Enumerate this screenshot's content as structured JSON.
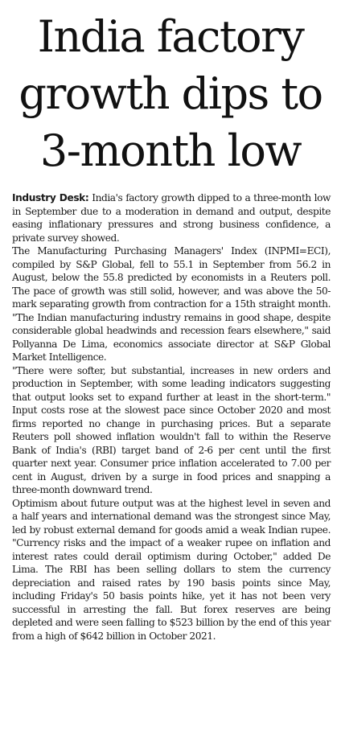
{
  "headline": {
    "line1": "India factory",
    "line2": "growth dips to",
    "line3": "3-month low"
  },
  "byline": "Industry Desk:",
  "paragraphs": [
    "India's factory growth dipped to a three-month low in September due to a moderation in demand and output, despite easing inflationary pressures and strong business confidence, a private survey showed.",
    "The Manufacturing Purchasing Managers' Index (INPMI=ECI), compiled by S&P Global, fell to 55.1 in September from 56.2 in August, below the 55.8 predicted by economists in a Reuters poll. The pace of growth was still solid, however, and was above the 50-mark separating growth from contraction for a 15th straight month. \"The Indian manufacturing industry remains in good shape, despite considerable global headwinds and recession fears elsewhere,\" said Pollyanna De Lima, economics associate director at S&P Global Market Intelligence.",
    "\"There were softer, but substantial, increases in new orders and production in September, with some leading indicators suggesting that output looks set to expand further at least in the short-term.\" Input costs rose at the slowest pace since October 2020 and most firms reported no change in purchasing prices. But a separate Reuters poll showed inflation wouldn't fall to within the Reserve Bank of India's (RBI) target band of 2-6 per cent until the first quarter next year. Consumer price inflation accelerated to 7.00 per cent in August, driven by a surge in food prices and snapping a three-month downward trend.",
    "Optimism about future output was at the highest level in seven and a half years and international demand was the strongest since May, led by robust external demand for goods amid a weak Indian rupee. \"Currency risks and the impact of a weaker rupee on inflation and interest rates could derail optimism during October,\" added De Lima. The RBI has been selling dollars to stem the currency depreciation and raised rates by 190 basis points since May, including Friday's 50 basis points hike, yet it has not been very successful in arresting the fall. But forex reserves are being depleted and were seen falling to $523 billion by the end of this year from a high of $642 billion in October 2021."
  ]
}
